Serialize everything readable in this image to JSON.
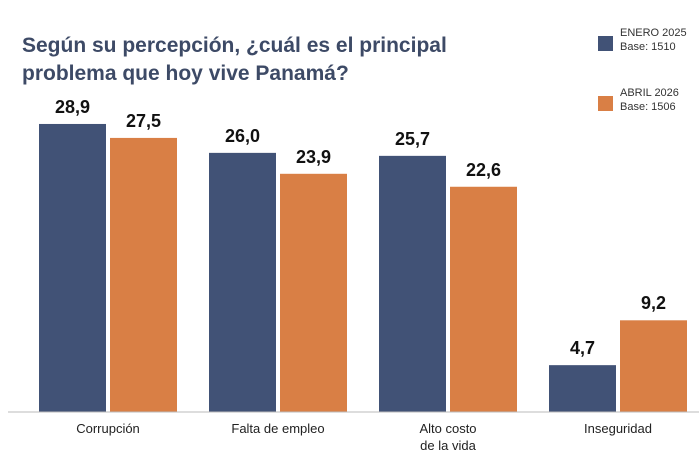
{
  "chart_data": {
    "type": "bar",
    "title": "Según su percepción, ¿cuál es el principal\nproblema que hoy vive Panamá?",
    "categories": [
      "Corrupción",
      "Falta de empleo",
      "Alto costo\nde la vida",
      "Inseguridad"
    ],
    "series": [
      {
        "name": "ENERO 2025",
        "base": "Base: 1510",
        "color": "#415276",
        "values": [
          28.9,
          26.0,
          25.7,
          4.7
        ],
        "value_labels": [
          "28,9",
          "26,0",
          "25,7",
          "4,7"
        ]
      },
      {
        "name": "ABRIL 2026",
        "base": "Base: 1506",
        "color": "#d97f45",
        "values": [
          27.5,
          23.9,
          22.6,
          9.2
        ],
        "value_labels": [
          "27,5",
          "23,9",
          "22,6",
          "9,2"
        ]
      }
    ],
    "ylim": [
      0,
      30
    ],
    "legend": "top-right"
  }
}
